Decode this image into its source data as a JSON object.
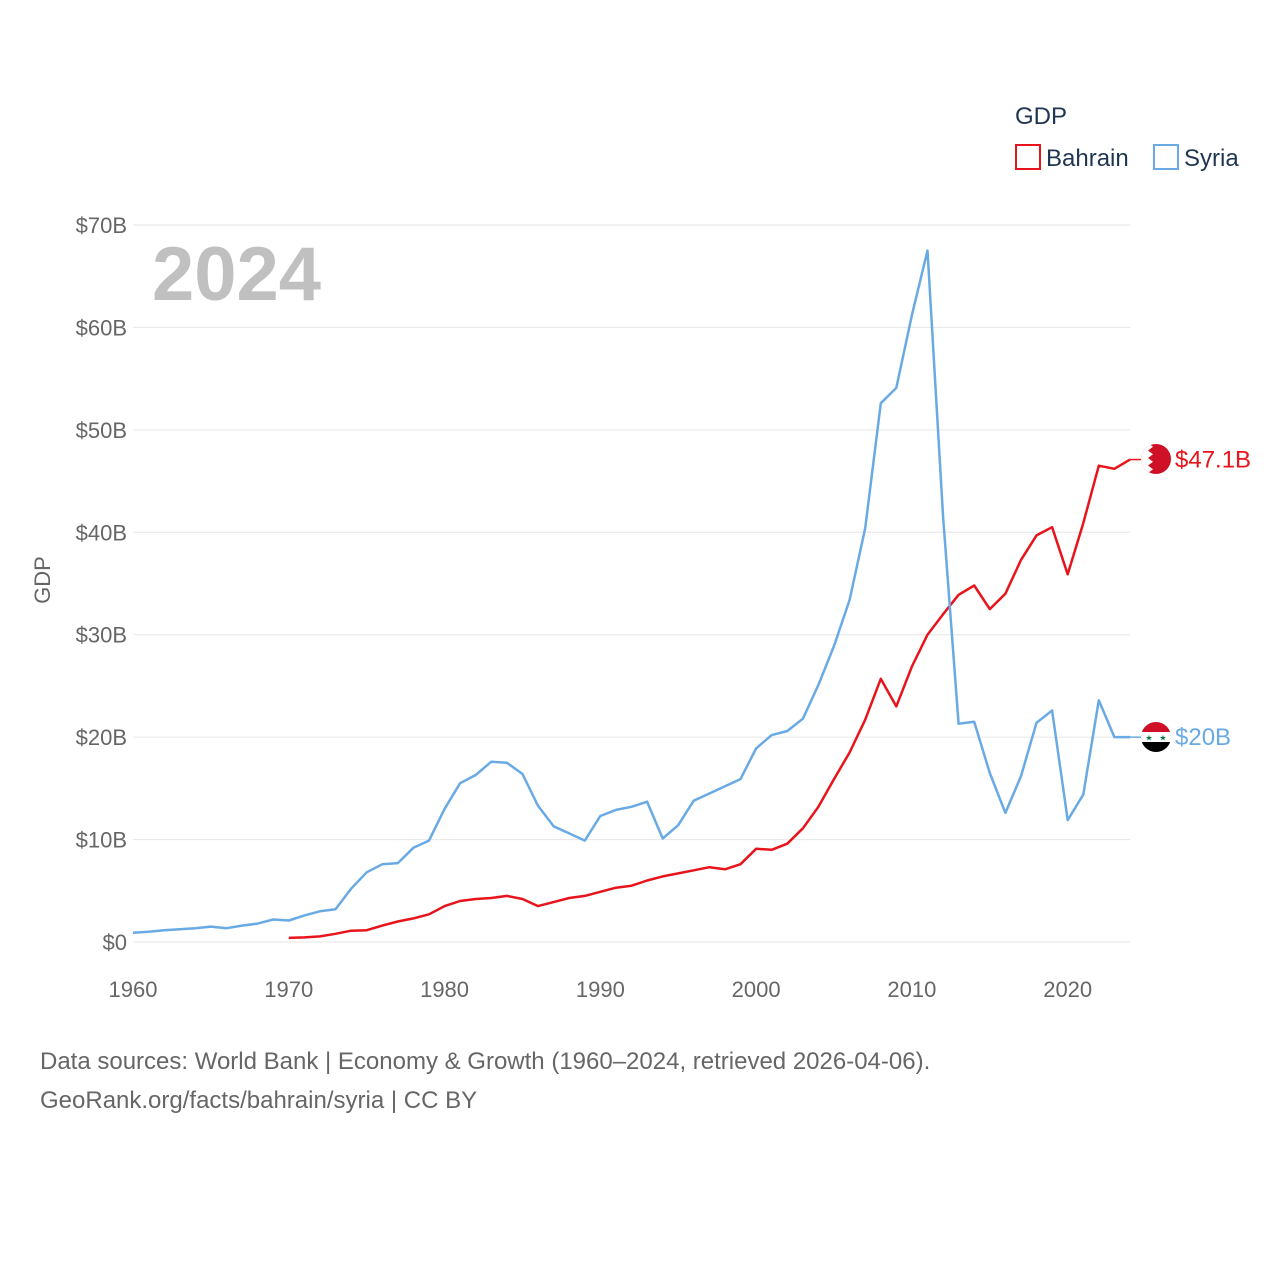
{
  "chart_data": {
    "type": "line",
    "title": "GDP",
    "year_label": "2024",
    "xlabel": "",
    "ylabel": "GDP",
    "xlim": [
      1960,
      2024
    ],
    "ylim": [
      0,
      70
    ],
    "x_ticks": [
      1960,
      1970,
      1980,
      1990,
      2000,
      2010,
      2020
    ],
    "x_tick_labels": [
      "1960",
      "1970",
      "1980",
      "1990",
      "2000",
      "2010",
      "2020"
    ],
    "y_ticks": [
      0,
      10,
      20,
      30,
      40,
      50,
      60,
      70
    ],
    "y_tick_labels": [
      "$0",
      "$10B",
      "$20B",
      "$30B",
      "$40B",
      "$50B",
      "$60B",
      "$70B"
    ],
    "legend": {
      "title": "GDP",
      "position": "top-right"
    },
    "series": [
      {
        "name": "Bahrain",
        "color": "#e8141b",
        "end_label": "$47.1B",
        "x": [
          1970,
          1971,
          1972,
          1973,
          1974,
          1975,
          1976,
          1977,
          1978,
          1979,
          1980,
          1981,
          1982,
          1983,
          1984,
          1985,
          1986,
          1987,
          1988,
          1989,
          1990,
          1991,
          1992,
          1993,
          1994,
          1995,
          1996,
          1997,
          1998,
          1999,
          2000,
          2001,
          2002,
          2003,
          2004,
          2005,
          2006,
          2007,
          2008,
          2009,
          2010,
          2011,
          2012,
          2013,
          2014,
          2015,
          2016,
          2017,
          2018,
          2019,
          2020,
          2021,
          2022,
          2023,
          2024
        ],
        "values": [
          0.4,
          0.45,
          0.55,
          0.8,
          1.1,
          1.15,
          1.6,
          2.0,
          2.3,
          2.7,
          3.5,
          4.0,
          4.2,
          4.3,
          4.5,
          4.2,
          3.5,
          3.9,
          4.3,
          4.5,
          4.9,
          5.3,
          5.5,
          6.0,
          6.4,
          6.7,
          7.0,
          7.3,
          7.1,
          7.6,
          9.1,
          9.0,
          9.6,
          11.1,
          13.2,
          15.9,
          18.5,
          21.7,
          25.7,
          23.0,
          26.9,
          30.0,
          32.0,
          33.9,
          34.8,
          32.5,
          34.0,
          37.3,
          39.7,
          40.5,
          35.9,
          40.9,
          46.5,
          46.2,
          47.1
        ]
      },
      {
        "name": "Syria",
        "color": "#6aaae4",
        "end_label": "$20B",
        "x": [
          1960,
          1961,
          1962,
          1963,
          1964,
          1965,
          1966,
          1967,
          1968,
          1969,
          1970,
          1971,
          1972,
          1973,
          1974,
          1975,
          1976,
          1977,
          1978,
          1979,
          1980,
          1981,
          1982,
          1983,
          1984,
          1985,
          1986,
          1987,
          1988,
          1989,
          1990,
          1991,
          1992,
          1993,
          1994,
          1995,
          1996,
          1997,
          1998,
          1999,
          2000,
          2001,
          2002,
          2003,
          2004,
          2005,
          2006,
          2007,
          2008,
          2009,
          2010,
          2011,
          2012,
          2013,
          2014,
          2015,
          2016,
          2017,
          2018,
          2019,
          2020,
          2021,
          2022,
          2023,
          2024
        ],
        "values": [
          0.9,
          1.0,
          1.15,
          1.25,
          1.35,
          1.5,
          1.35,
          1.6,
          1.8,
          2.2,
          2.1,
          2.6,
          3.0,
          3.2,
          5.2,
          6.8,
          7.6,
          7.7,
          9.2,
          9.9,
          13.0,
          15.5,
          16.3,
          17.6,
          17.5,
          16.4,
          13.3,
          11.3,
          10.6,
          9.9,
          12.3,
          12.9,
          13.2,
          13.7,
          10.1,
          11.4,
          13.8,
          14.5,
          15.2,
          15.9,
          18.9,
          20.2,
          20.6,
          21.8,
          25.1,
          28.9,
          33.4,
          40.4,
          52.6,
          54.1,
          61.2,
          67.5,
          41.5,
          21.3,
          21.5,
          16.5,
          12.6,
          16.2,
          21.4,
          22.6,
          11.9,
          14.4,
          23.6,
          20.0,
          20.0
        ]
      }
    ]
  },
  "source": {
    "line1": "Data sources: World Bank | Economy & Growth (1960–2024, retrieved 2026-04-06).",
    "line2": "GeoRank.org/facts/bahrain/syria | CC BY"
  }
}
